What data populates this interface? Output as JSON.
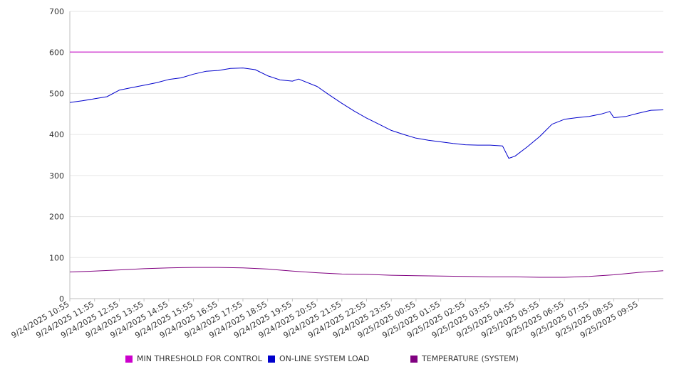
{
  "chart_data": {
    "type": "line",
    "title": "",
    "xlabel": "",
    "ylabel": "",
    "ylim": [
      0,
      700
    ],
    "y_ticks": [
      0,
      100,
      200,
      300,
      400,
      500,
      600,
      700
    ],
    "grid": "horizontal",
    "legend_position": "bottom",
    "x_tick_labels": [
      "9/24/2025 10:55",
      "9/24/2025 11:55",
      "9/24/2025 12:55",
      "9/24/2025 13:55",
      "9/24/2025 14:55",
      "9/24/2025 15:55",
      "9/24/2025 16:55",
      "9/24/2025 17:55",
      "9/24/2025 18:55",
      "9/24/2025 19:55",
      "9/24/2025 20:55",
      "9/24/2025 21:55",
      "9/24/2025 22:55",
      "9/24/2025 23:55",
      "9/25/2025 00:55",
      "9/25/2025 01:55",
      "9/25/2025 02:55",
      "9/25/2025 03:55",
      "9/25/2025 04:55",
      "9/25/2025 05:55",
      "9/25/2025 06:55",
      "9/25/2025 07:55",
      "9/25/2025 08:55",
      "9/25/2025 09:55"
    ],
    "x_range": [
      "9/24/2025 10:55",
      "9/25/2025 10:55"
    ],
    "series": [
      {
        "name": "MIN THRESHOLD FOR CONTROL",
        "color": "#cc00cc",
        "points": [
          [
            "9/24/2025 10:55",
            601
          ],
          [
            "9/25/2025 10:55",
            601
          ]
        ]
      },
      {
        "name": "ON-LINE SYSTEM LOAD",
        "color": "#0000cc",
        "points": [
          [
            "9/24/2025 10:55",
            478
          ],
          [
            "9/24/2025 11:25",
            482
          ],
          [
            "9/24/2025 11:55",
            487
          ],
          [
            "9/24/2025 12:25",
            492
          ],
          [
            "9/24/2025 12:55",
            508
          ],
          [
            "9/24/2025 13:25",
            514
          ],
          [
            "9/24/2025 13:55",
            520
          ],
          [
            "9/24/2025 14:25",
            526
          ],
          [
            "9/24/2025 14:55",
            534
          ],
          [
            "9/24/2025 15:25",
            538
          ],
          [
            "9/24/2025 15:55",
            547
          ],
          [
            "9/24/2025 16:25",
            554
          ],
          [
            "9/24/2025 16:55",
            556
          ],
          [
            "9/24/2025 17:25",
            561
          ],
          [
            "9/24/2025 17:55",
            562
          ],
          [
            "9/24/2025 18:25",
            558
          ],
          [
            "9/24/2025 18:55",
            543
          ],
          [
            "9/24/2025 19:25",
            533
          ],
          [
            "9/24/2025 19:55",
            530
          ],
          [
            "9/24/2025 20:10",
            535
          ],
          [
            "9/24/2025 20:55",
            517
          ],
          [
            "9/24/2025 21:25",
            496
          ],
          [
            "9/24/2025 21:55",
            476
          ],
          [
            "9/24/2025 22:25",
            457
          ],
          [
            "9/24/2025 22:55",
            440
          ],
          [
            "9/24/2025 23:25",
            425
          ],
          [
            "9/24/2025 23:55",
            410
          ],
          [
            "9/25/2025 00:25",
            400
          ],
          [
            "9/25/2025 00:55",
            391
          ],
          [
            "9/25/2025 01:25",
            386
          ],
          [
            "9/25/2025 01:55",
            382
          ],
          [
            "9/25/2025 02:25",
            378
          ],
          [
            "9/25/2025 02:55",
            375
          ],
          [
            "9/25/2025 03:25",
            374
          ],
          [
            "9/25/2025 03:55",
            374
          ],
          [
            "9/25/2025 04:25",
            372
          ],
          [
            "9/25/2025 04:40",
            342
          ],
          [
            "9/25/2025 04:55",
            347
          ],
          [
            "9/25/2025 05:25",
            370
          ],
          [
            "9/25/2025 05:55",
            395
          ],
          [
            "9/25/2025 06:25",
            425
          ],
          [
            "9/25/2025 06:55",
            437
          ],
          [
            "9/25/2025 07:25",
            441
          ],
          [
            "9/25/2025 07:55",
            444
          ],
          [
            "9/25/2025 08:25",
            450
          ],
          [
            "9/25/2025 08:45",
            456
          ],
          [
            "9/25/2025 08:55",
            441
          ],
          [
            "9/25/2025 09:25",
            444
          ],
          [
            "9/25/2025 09:55",
            452
          ],
          [
            "9/25/2025 10:25",
            459
          ],
          [
            "9/25/2025 10:55",
            460
          ]
        ]
      },
      {
        "name": "TEMPERATURE (SYSTEM)",
        "color": "#800080",
        "points": [
          [
            "9/24/2025 10:55",
            65
          ],
          [
            "9/24/2025 11:55",
            67
          ],
          [
            "9/24/2025 12:55",
            70
          ],
          [
            "9/24/2025 13:55",
            73
          ],
          [
            "9/24/2025 14:55",
            75
          ],
          [
            "9/24/2025 15:55",
            76
          ],
          [
            "9/24/2025 16:55",
            76
          ],
          [
            "9/24/2025 17:55",
            75
          ],
          [
            "9/24/2025 18:55",
            72
          ],
          [
            "9/24/2025 19:55",
            67
          ],
          [
            "9/24/2025 20:55",
            63
          ],
          [
            "9/24/2025 21:55",
            60
          ],
          [
            "9/24/2025 22:55",
            59
          ],
          [
            "9/24/2025 23:55",
            57
          ],
          [
            "9/25/2025 00:55",
            56
          ],
          [
            "9/25/2025 01:55",
            55
          ],
          [
            "9/25/2025 02:55",
            54
          ],
          [
            "9/25/2025 03:55",
            53
          ],
          [
            "9/25/2025 04:55",
            53
          ],
          [
            "9/25/2025 05:55",
            52
          ],
          [
            "9/25/2025 06:55",
            52
          ],
          [
            "9/25/2025 07:55",
            54
          ],
          [
            "9/25/2025 08:55",
            58
          ],
          [
            "9/25/2025 09:55",
            64
          ],
          [
            "9/25/2025 10:55",
            68
          ]
        ]
      }
    ]
  }
}
